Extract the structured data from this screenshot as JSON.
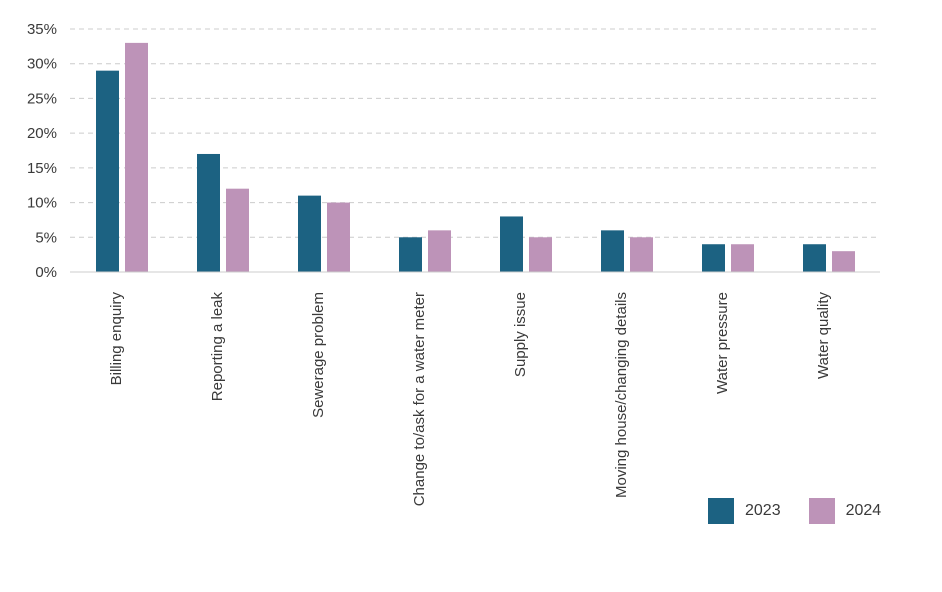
{
  "chart_data": {
    "type": "bar",
    "categories": [
      "Billing enquiry",
      "Reporting a leak",
      "Sewerage problem",
      "Change to/ask for a water meter",
      "Supply issue",
      "Moving house/changing details",
      "Water pressure",
      "Water quality"
    ],
    "series": [
      {
        "name": "2023",
        "color": "#1c6282",
        "values": [
          29,
          17,
          11,
          5,
          8,
          6,
          4,
          4
        ]
      },
      {
        "name": "2024",
        "color": "#bd93b8",
        "values": [
          33,
          12,
          10,
          6,
          5,
          5,
          4,
          3
        ]
      }
    ],
    "ylim": [
      0,
      35
    ],
    "yticks": [
      "0%",
      "5%",
      "10%",
      "15%",
      "20%",
      "25%",
      "30%",
      "35%"
    ],
    "grid": true,
    "legend_position": "bottom-right"
  }
}
